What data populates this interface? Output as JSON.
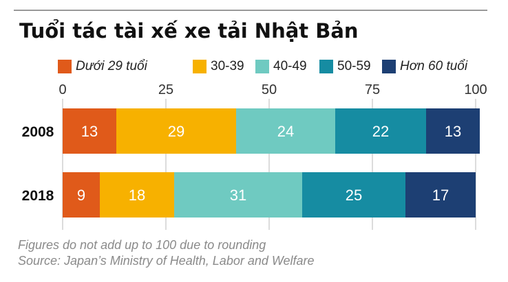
{
  "title": "Tuổi tác tài xế xe tải Nhật Bản",
  "legend": [
    {
      "label": "Dưới 29 tuổi",
      "color": "#e05a1a",
      "italic": true
    },
    {
      "label": "30-39",
      "color": "#f7b100",
      "italic": false
    },
    {
      "label": "40-49",
      "color": "#6fcac1",
      "italic": false
    },
    {
      "label": "50-59",
      "color": "#168ca2",
      "italic": false
    },
    {
      "label": "Hơn 60 tuổi",
      "color": "#1d3f73",
      "italic": true
    }
  ],
  "chart_data": {
    "type": "bar",
    "orientation": "horizontal",
    "stacked": true,
    "categories": [
      "2008",
      "2018"
    ],
    "series": [
      {
        "name": "Dưới 29 tuổi",
        "values": [
          13,
          9
        ]
      },
      {
        "name": "30-39",
        "values": [
          29,
          18
        ]
      },
      {
        "name": "40-49",
        "values": [
          24,
          31
        ]
      },
      {
        "name": "50-59",
        "values": [
          22,
          25
        ]
      },
      {
        "name": "Hơn 60 tuổi",
        "values": [
          13,
          17
        ]
      }
    ],
    "xlim": [
      0,
      100
    ],
    "xticks": [
      0,
      25,
      50,
      75,
      100
    ],
    "grid": true,
    "legend_position": "top"
  },
  "footnotes": [
    "Figures do not add up to 100 due to rounding",
    "Source: Japan’s Ministry of Health, Labor and Welfare"
  ]
}
